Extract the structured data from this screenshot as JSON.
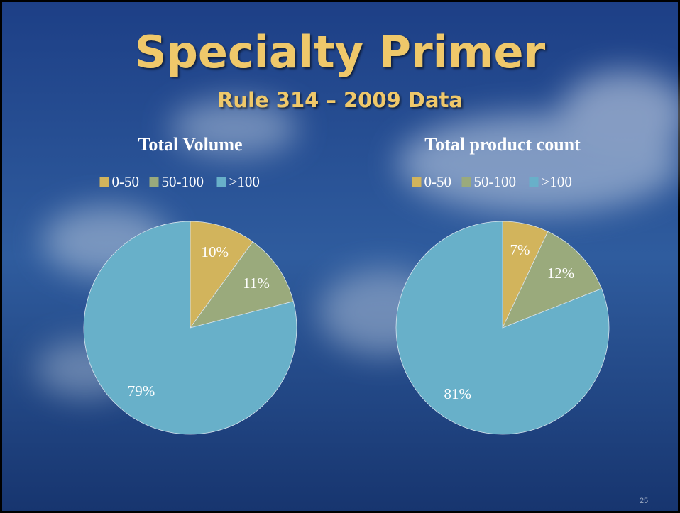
{
  "slide": {
    "title": "Specialty Primer",
    "subtitle": "Rule 314 – 2009 Data",
    "page_number": "25"
  },
  "chart_data": [
    {
      "type": "pie",
      "title": "Total Volume",
      "categories": [
        "0-50",
        "50-100",
        ">100"
      ],
      "values": [
        10,
        11,
        79
      ],
      "value_labels": [
        "10%",
        "11%",
        "79%"
      ],
      "colors": [
        "#d2b45c",
        "#9aaa7c",
        "#68b0c9"
      ],
      "legend": "top"
    },
    {
      "type": "pie",
      "title": "Total product count",
      "categories": [
        "0-50",
        "50-100",
        ">100"
      ],
      "values": [
        7,
        12,
        81
      ],
      "value_labels": [
        "7%",
        "12%",
        "81%"
      ],
      "colors": [
        "#d2b45c",
        "#9aaa7c",
        "#68b0c9"
      ],
      "legend": "top"
    }
  ]
}
